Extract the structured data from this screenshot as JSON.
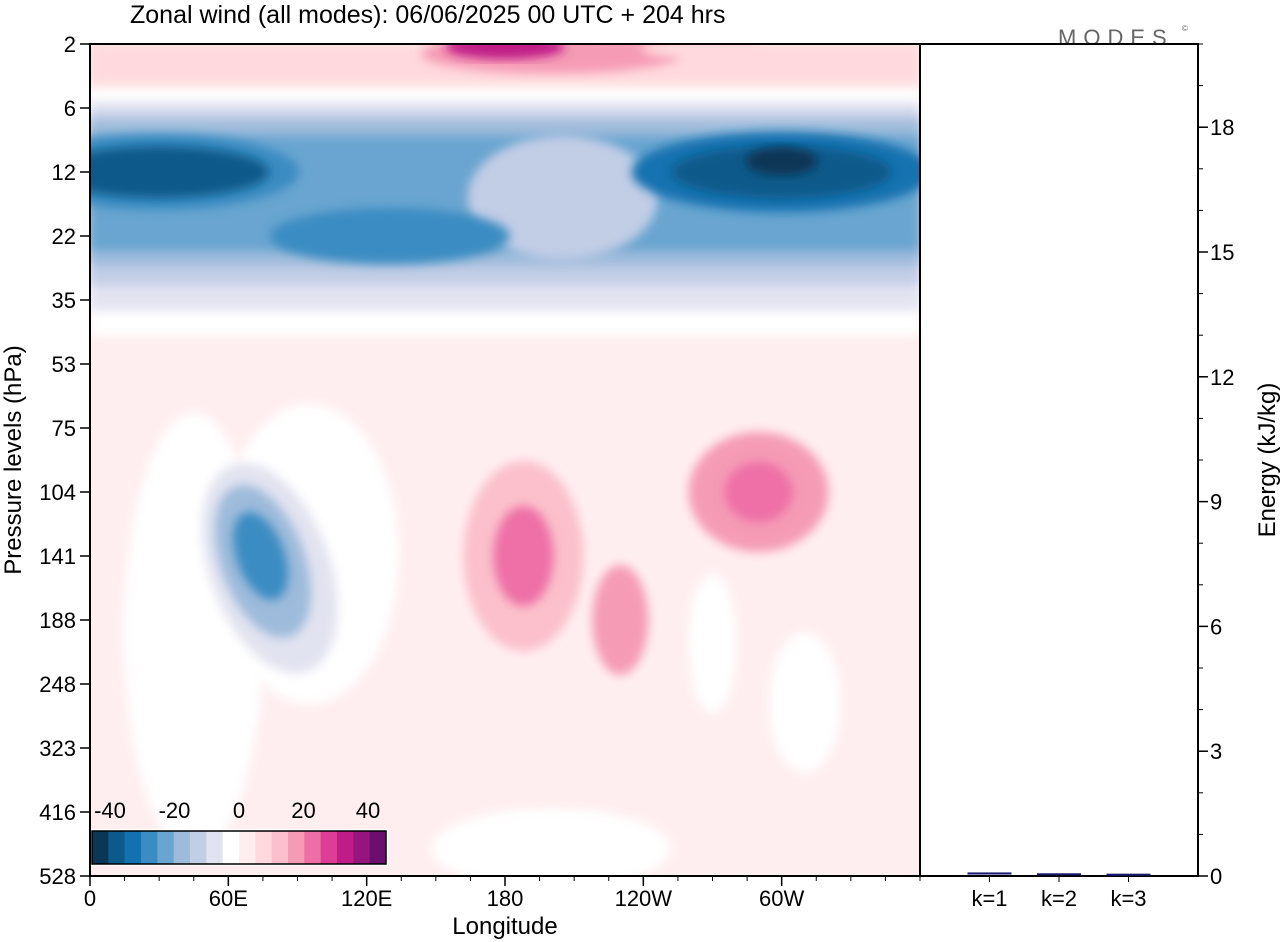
{
  "chart_data": {
    "type": "heatmap",
    "title": "Zonal wind (all modes):  06/06/2025  00 UTC  + 204 hrs",
    "logo_text": "MODES",
    "logo_mark": "©",
    "xlabel": "Longitude",
    "ylabel": "Pressure levels (hPa)",
    "x_ticks": [
      "0",
      "60E",
      "120E",
      "180",
      "120W",
      "60W"
    ],
    "y_ticks": [
      "2",
      "6",
      "12",
      "22",
      "35",
      "53",
      "75",
      "104",
      "141",
      "188",
      "248",
      "323",
      "416",
      "528"
    ],
    "colorbar": {
      "tick_labels": [
        "-40",
        "-20",
        "0",
        "20",
        "40"
      ],
      "levels": [
        -45,
        -40,
        -35,
        -30,
        -25,
        -20,
        -15,
        -10,
        -5,
        0,
        5,
        10,
        15,
        20,
        25,
        30,
        35,
        40,
        45
      ],
      "colors": [
        "#0b3655",
        "#0b5a8a",
        "#1272b0",
        "#3a8cc2",
        "#69a5d0",
        "#9ebbdb",
        "#c2cde6",
        "#e2e3f0",
        "#ffffff",
        "#ffeef0",
        "#ffd9dd",
        "#fbc0cb",
        "#f59bb5",
        "#ee6fa6",
        "#de3d95",
        "#c01c87",
        "#96157c",
        "#6a0f6e"
      ]
    },
    "field_description_regions": [
      {
        "lon": 200,
        "level": 2,
        "u": 35
      },
      {
        "lon": 265,
        "level": 2,
        "u": 15
      },
      {
        "lon": 30,
        "level": 12,
        "u": -40
      },
      {
        "lon": 300,
        "level": 12,
        "u": -45
      },
      {
        "lon": 200,
        "level": 12,
        "u": -20
      },
      {
        "lon": 130,
        "level": 22,
        "u": -30
      },
      {
        "lon": 60,
        "level": 35,
        "u": -10
      },
      {
        "lon": 75,
        "level": 141,
        "u": -30
      },
      {
        "lon": 188,
        "level": 141,
        "u": 20
      },
      {
        "lon": 290,
        "level": 104,
        "u": 20
      },
      {
        "lon": 230,
        "level": 188,
        "u": 15
      },
      {
        "lon": 270,
        "level": 210,
        "u": -10
      },
      {
        "lon": 310,
        "level": 270,
        "u": -10
      }
    ],
    "energy_axis": {
      "label": "Energy (kJ/kg)",
      "ylim": [
        0,
        20
      ],
      "ticks": [
        "0",
        "3",
        "6",
        "9",
        "12",
        "15",
        "18"
      ],
      "categories": [
        "k=1",
        "k=2",
        "k=3"
      ],
      "values": [
        0.05,
        0.03,
        0.02
      ],
      "bar_color": "#1a1a6e"
    }
  }
}
